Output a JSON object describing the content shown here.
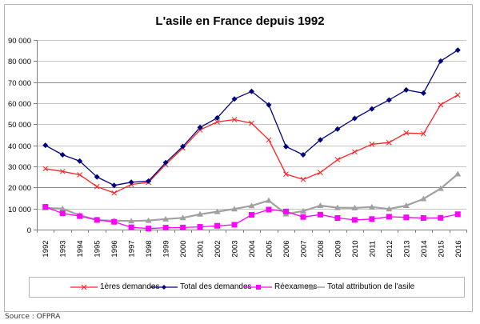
{
  "chart_data": {
    "type": "line",
    "title": "L'asile en France depuis 1992",
    "xlabel": "",
    "ylabel": "",
    "ylim": [
      0,
      90000
    ],
    "yticks": [
      0,
      10000,
      20000,
      30000,
      40000,
      50000,
      60000,
      70000,
      80000,
      90000
    ],
    "ytick_labels": [
      "0",
      "10 000",
      "20 000",
      "30 000",
      "40 000",
      "50 000",
      "60 000",
      "70 000",
      "80 000",
      "90 000"
    ],
    "grid": true,
    "legend_position": "bottom",
    "x": [
      "1992",
      "1993",
      "1994",
      "1995",
      "1996",
      "1997",
      "1998",
      "1999",
      "2000",
      "2001",
      "2002",
      "2003",
      "2004",
      "2005",
      "2006",
      "2007",
      "2008",
      "2009",
      "2010",
      "2011",
      "2012",
      "2013",
      "2014",
      "2015",
      "2016"
    ],
    "series": [
      {
        "name": "1ères demandes",
        "color": "#ff2020",
        "marker": "x",
        "values": [
          28900,
          27600,
          26000,
          20400,
          17400,
          21400,
          22400,
          30900,
          38700,
          47300,
          51100,
          52200,
          50500,
          42600,
          26300,
          23800,
          27100,
          33200,
          36900,
          40500,
          41300,
          45900,
          45500,
          59300,
          63900
        ]
      },
      {
        "name": "Total des demandes",
        "color": "#000080",
        "marker": "diamond",
        "values": [
          40000,
          35500,
          32500,
          25000,
          21000,
          22500,
          23000,
          31800,
          39500,
          48500,
          53000,
          62000,
          65600,
          59200,
          39400,
          35500,
          42600,
          47700,
          52800,
          57300,
          61500,
          66300,
          64800,
          80000,
          85200
        ]
      },
      {
        "name": "Réexamens",
        "color": "#ff00ff",
        "marker": "square",
        "values": [
          10800,
          7700,
          6400,
          4600,
          3700,
          1100,
          500,
          900,
          1000,
          1300,
          1800,
          2300,
          7000,
          9500,
          8600,
          6000,
          7100,
          5500,
          4600,
          5000,
          6100,
          5800,
          5500,
          5600,
          7300
        ]
      },
      {
        "name": "Total attribution de l'asile",
        "color": "#a0a0a0",
        "marker": "triangle",
        "values": [
          10300,
          9900,
          6800,
          4500,
          4200,
          4100,
          4300,
          5000,
          5600,
          7300,
          8500,
          9800,
          11300,
          13800,
          7400,
          8800,
          11400,
          10400,
          10300,
          10700,
          9800,
          11400,
          14600,
          19500,
          26400
        ]
      }
    ]
  },
  "source": "Source : OFPRA"
}
